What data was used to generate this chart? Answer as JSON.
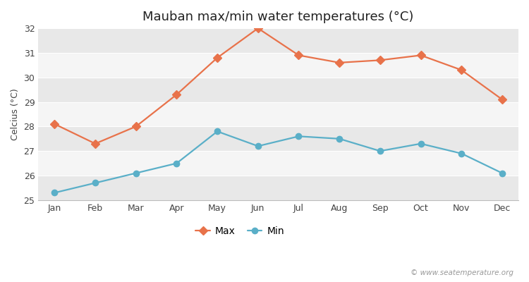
{
  "title": "Mauban max/min water temperatures (°C)",
  "ylabel": "Celcius (°C)",
  "months": [
    "Jan",
    "Feb",
    "Mar",
    "Apr",
    "May",
    "Jun",
    "Jul",
    "Aug",
    "Sep",
    "Oct",
    "Nov",
    "Dec"
  ],
  "max_values": [
    28.1,
    27.3,
    28.0,
    29.3,
    30.8,
    32.0,
    30.9,
    30.6,
    30.7,
    30.9,
    30.3,
    29.1
  ],
  "min_values": [
    25.3,
    25.7,
    26.1,
    26.5,
    27.8,
    27.2,
    27.6,
    27.5,
    27.0,
    27.3,
    26.9,
    26.1
  ],
  "max_color": "#e8724a",
  "min_color": "#5aafc8",
  "ylim": [
    25,
    32
  ],
  "yticks": [
    25,
    26,
    27,
    28,
    29,
    30,
    31,
    32
  ],
  "bg_color": "#ffffff",
  "band_light": "#f5f5f5",
  "band_dark": "#e8e8e8",
  "watermark": "© www.seatemperature.org",
  "title_fontsize": 13,
  "label_fontsize": 9,
  "tick_fontsize": 9,
  "max_marker": "D",
  "min_marker": "o",
  "marker_size": 6,
  "line_width": 1.6
}
